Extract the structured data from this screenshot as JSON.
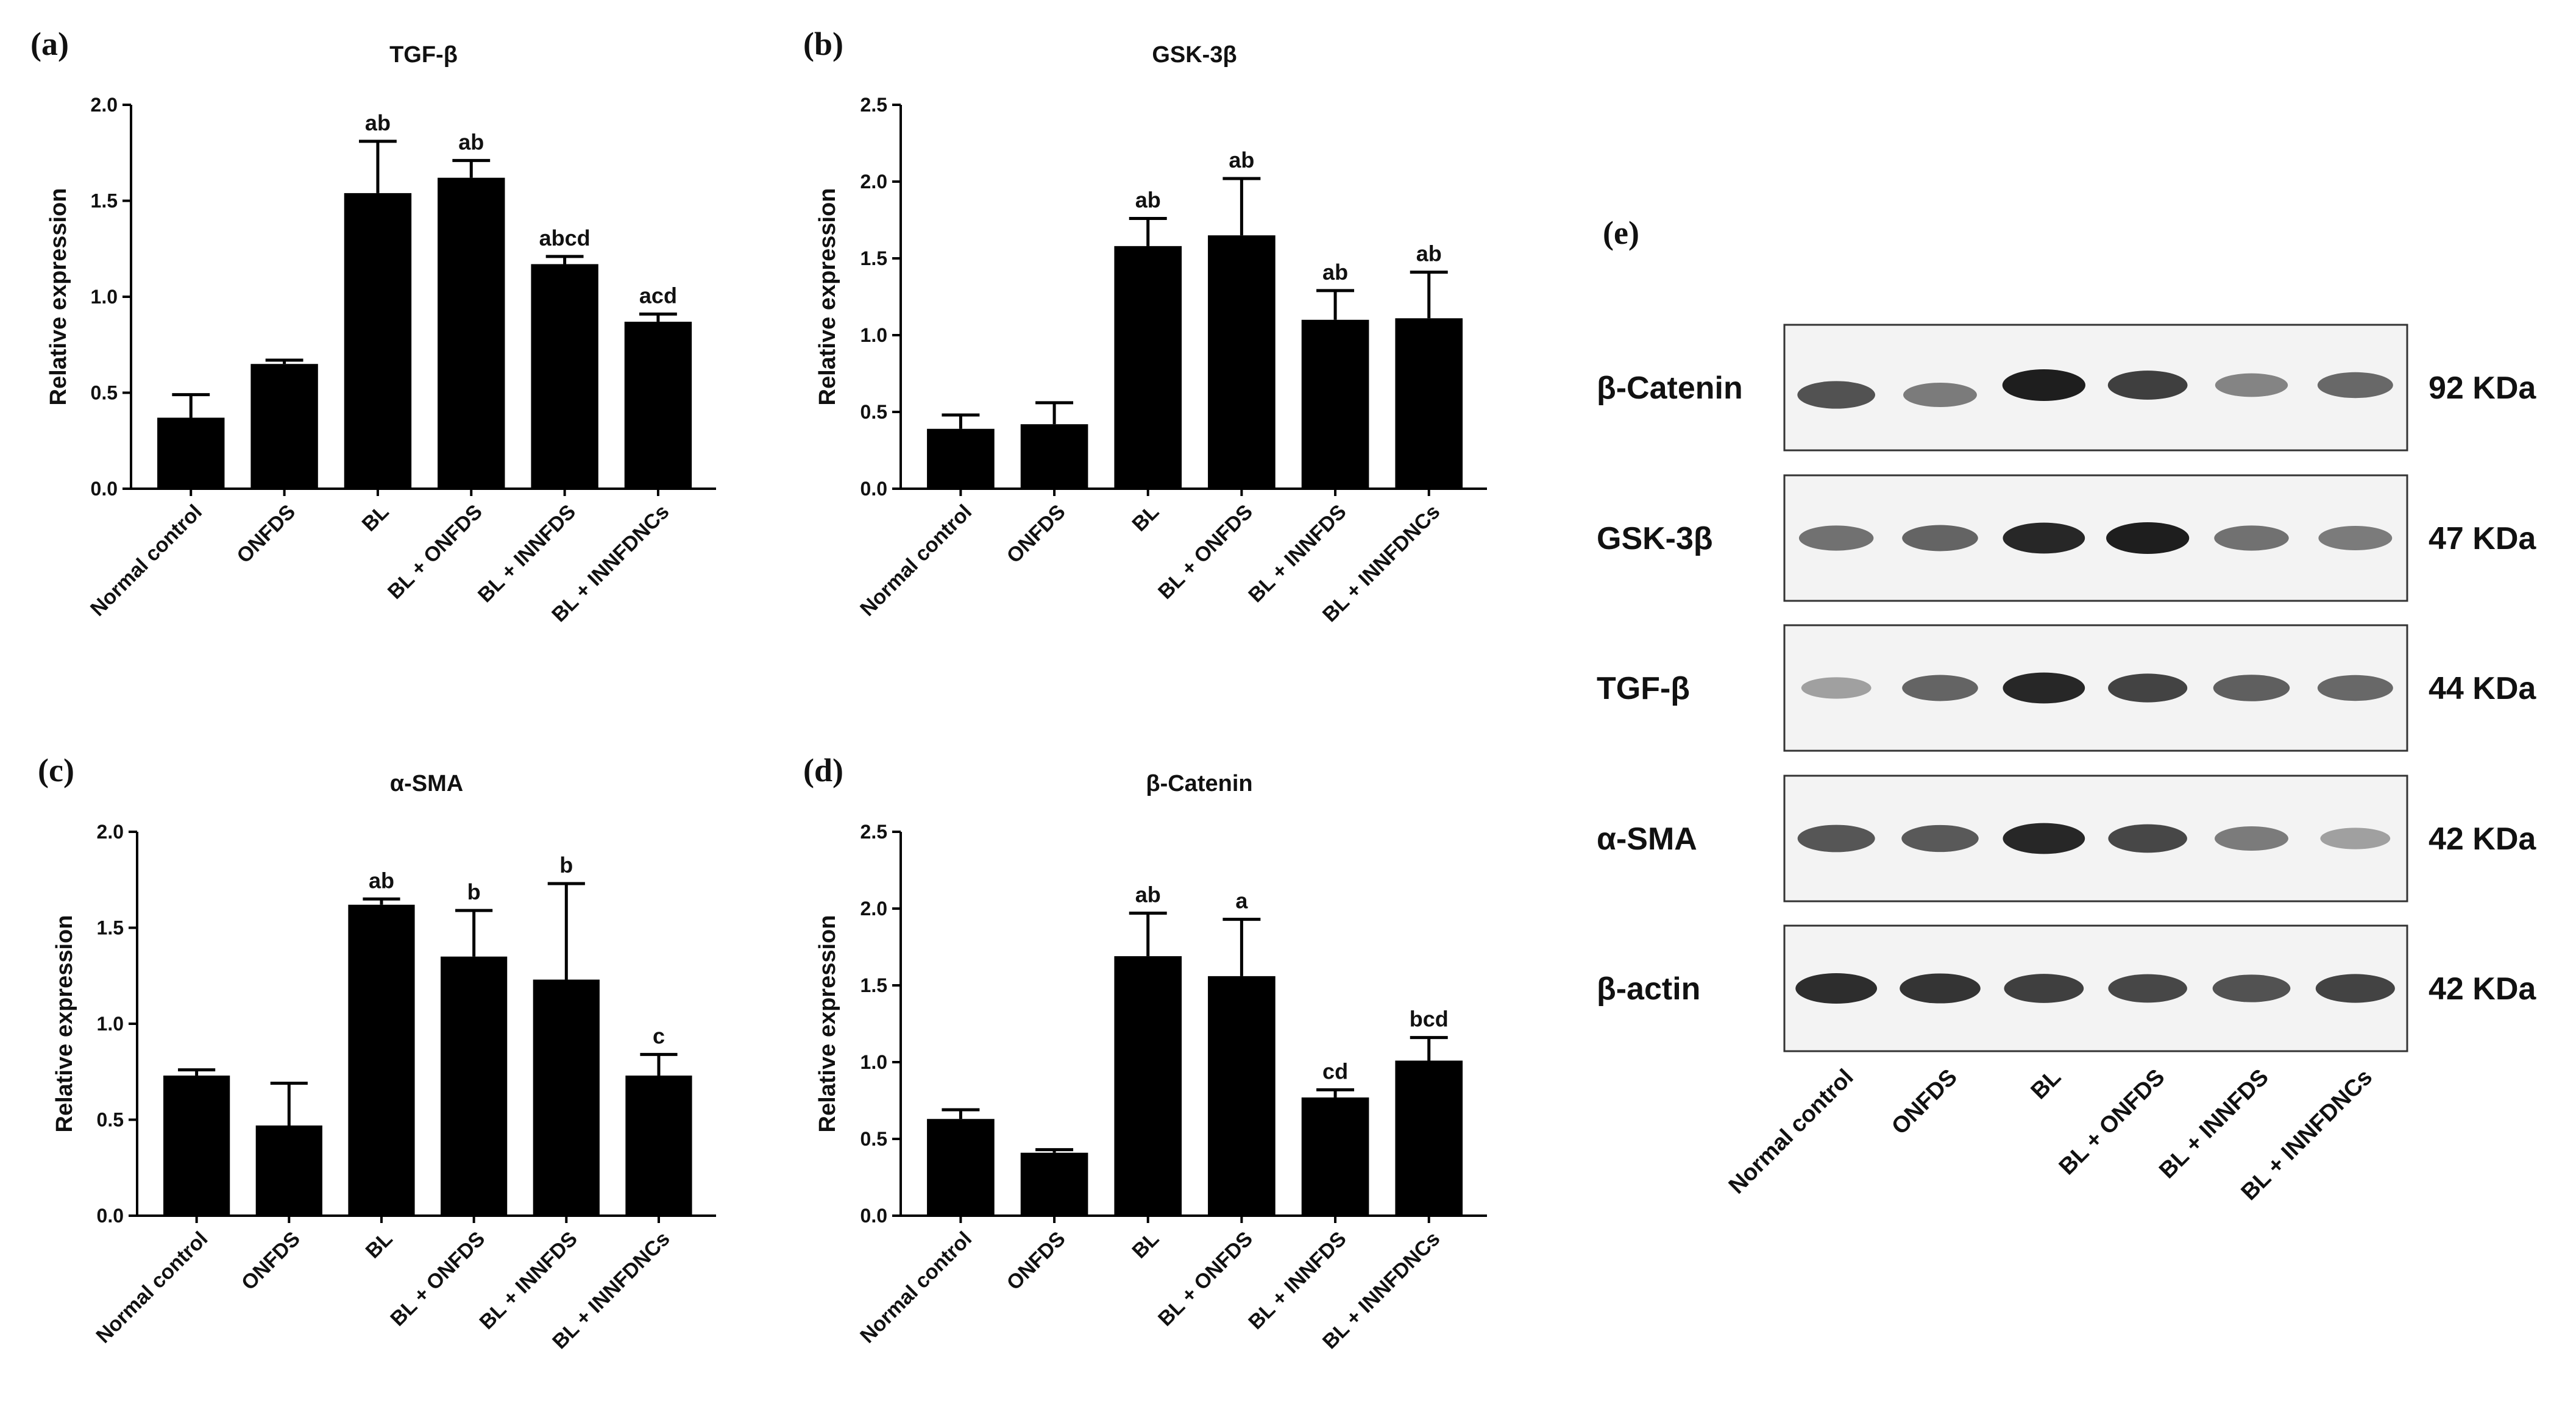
{
  "figure": {
    "panel_letters": [
      "(a)",
      "(b)",
      "(c)",
      "(d)",
      "(e)"
    ]
  },
  "chart_data": [
    {
      "type": "bar",
      "panel": "(a)",
      "title": "TGF-β",
      "ylabel": "Relative expression",
      "xlabel": "",
      "ylim": [
        0,
        2.0
      ],
      "yticks": [
        "0.0",
        "0.5",
        "1.0",
        "1.5",
        "2.0"
      ],
      "ytick_values": [
        0,
        0.5,
        1.0,
        1.5,
        2.0
      ],
      "categories": [
        "Normal control",
        "ONFDS",
        "BL",
        "BL + ONFDS",
        "BL + INNFDS",
        "BL + INNFDNCs"
      ],
      "values": [
        0.37,
        0.65,
        1.54,
        1.62,
        1.17,
        0.87
      ],
      "errors": [
        0.12,
        0.02,
        0.27,
        0.09,
        0.04,
        0.04
      ],
      "annotations": [
        "",
        "",
        "ab",
        "ab",
        "abcd",
        "acd"
      ]
    },
    {
      "type": "bar",
      "panel": "(b)",
      "title": "GSK-3β",
      "ylabel": "Relative expression",
      "xlabel": "",
      "ylim": [
        0,
        2.5
      ],
      "yticks": [
        "0.0",
        "0.5",
        "1.0",
        "1.5",
        "2.0",
        "2.5"
      ],
      "ytick_values": [
        0,
        0.5,
        1.0,
        1.5,
        2.0,
        2.5
      ],
      "categories": [
        "Normal control",
        "ONFDS",
        "BL",
        "BL + ONFDS",
        "BL + INNFDS",
        "BL + INNFDNCs"
      ],
      "values": [
        0.39,
        0.42,
        1.58,
        1.65,
        1.1,
        1.11
      ],
      "errors": [
        0.09,
        0.14,
        0.18,
        0.37,
        0.19,
        0.3
      ],
      "annotations": [
        "",
        "",
        "ab",
        "ab",
        "ab",
        "ab"
      ]
    },
    {
      "type": "bar",
      "panel": "(c)",
      "title": "α-SMA",
      "ylabel": "Relative expression",
      "xlabel": "",
      "ylim": [
        0,
        2.0
      ],
      "yticks": [
        "0.0",
        "0.5",
        "1.0",
        "1.5",
        "2.0"
      ],
      "ytick_values": [
        0,
        0.5,
        1.0,
        1.5,
        2.0
      ],
      "categories": [
        "Normal control",
        "ONFDS",
        "BL",
        "BL + ONFDS",
        "BL + INNFDS",
        "BL + INNFDNCs"
      ],
      "values": [
        0.73,
        0.47,
        1.62,
        1.35,
        1.23,
        0.73
      ],
      "errors": [
        0.03,
        0.22,
        0.03,
        0.24,
        0.5,
        0.11
      ],
      "annotations": [
        "",
        "",
        "ab",
        "b",
        "b",
        "c"
      ]
    },
    {
      "type": "bar",
      "panel": "(d)",
      "title": "β-Catenin",
      "ylabel": "Relative expression",
      "xlabel": "",
      "ylim": [
        0,
        2.5
      ],
      "yticks": [
        "0.0",
        "0.5",
        "1.0",
        "1.5",
        "2.0",
        "2.5"
      ],
      "ytick_values": [
        0,
        0.5,
        1.0,
        1.5,
        2.0,
        2.5
      ],
      "categories": [
        "Normal control",
        "ONFDS",
        "BL",
        "BL + ONFDS",
        "BL + INNFDS",
        "BL + INNFDNCs"
      ],
      "values": [
        0.63,
        0.41,
        1.69,
        1.56,
        0.77,
        1.01
      ],
      "errors": [
        0.06,
        0.02,
        0.28,
        0.37,
        0.05,
        0.15
      ],
      "annotations": [
        "",
        "",
        "ab",
        "a",
        "cd",
        "bcd"
      ]
    }
  ],
  "western_blot": {
    "panel": "(e)",
    "lane_labels": [
      "Normal control",
      "ONFDS",
      "BL",
      "BL + ONFDS",
      "BL + INNFDS",
      "BL + INNFDNCs"
    ],
    "rows": [
      {
        "protein": "β-Catenin",
        "size": "92 KDa",
        "intensity": [
          0.72,
          0.5,
          1.0,
          0.82,
          0.45,
          0.6
        ]
      },
      {
        "protein": "GSK-3β",
        "size": "47 KDa",
        "intensity": [
          0.55,
          0.62,
          0.95,
          1.0,
          0.55,
          0.5
        ]
      },
      {
        "protein": "TGF-β",
        "size": "44 KDa",
        "intensity": [
          0.3,
          0.62,
          0.95,
          0.8,
          0.65,
          0.6
        ]
      },
      {
        "protein": "α-SMA",
        "size": "42 KDa",
        "intensity": [
          0.7,
          0.68,
          0.95,
          0.78,
          0.5,
          0.3
        ]
      },
      {
        "protein": "β-actin",
        "size": "42 KDa",
        "intensity": [
          0.92,
          0.88,
          0.82,
          0.78,
          0.72,
          0.8
        ]
      }
    ]
  }
}
